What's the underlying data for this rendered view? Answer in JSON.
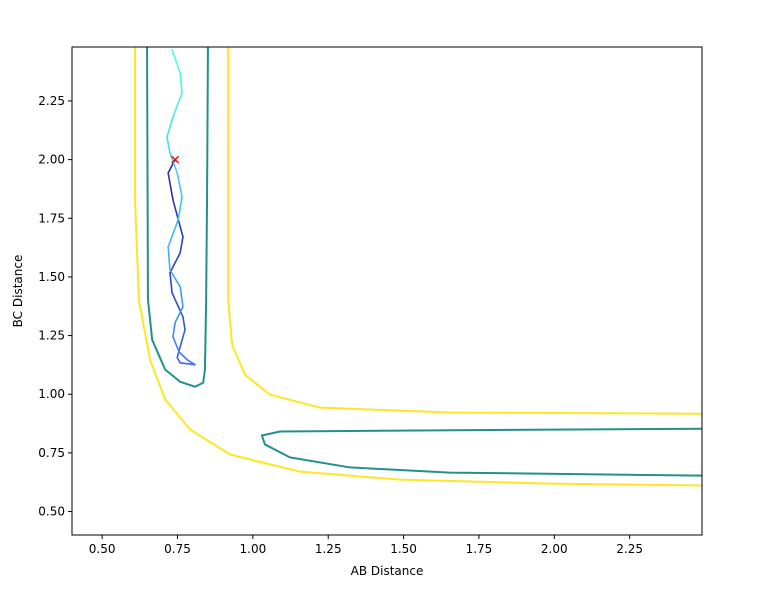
{
  "chart_data": {
    "type": "line",
    "title": "",
    "xlabel": "AB Distance",
    "ylabel": "BC Distance",
    "xlim": [
      0.4,
      2.49
    ],
    "ylim": [
      0.4,
      2.48
    ],
    "xticks": [
      "0.50",
      "0.75",
      "1.00",
      "1.25",
      "1.50",
      "1.75",
      "2.00",
      "2.25"
    ],
    "yticks": [
      "0.50",
      "0.75",
      "1.00",
      "1.25",
      "1.50",
      "1.75",
      "2.00",
      "2.25"
    ],
    "grid": false,
    "contours": [
      {
        "level_color": "#fde725",
        "points": [
          [
            0.609,
            2.48
          ],
          [
            0.609,
            1.828
          ],
          [
            0.622,
            1.4
          ],
          [
            0.659,
            1.147
          ],
          [
            0.709,
            0.977
          ],
          [
            0.792,
            0.849
          ],
          [
            0.924,
            0.743
          ],
          [
            1.156,
            0.67
          ],
          [
            1.488,
            0.636
          ],
          [
            1.985,
            0.619
          ],
          [
            2.489,
            0.611
          ]
        ]
      },
      {
        "level_color": "#fde725",
        "points": [
          [
            0.918,
            2.48
          ],
          [
            0.918,
            1.4
          ],
          [
            0.931,
            1.211
          ],
          [
            0.974,
            1.083
          ],
          [
            1.057,
            0.998
          ],
          [
            1.223,
            0.943
          ],
          [
            1.653,
            0.922
          ],
          [
            2.489,
            0.917
          ]
        ]
      },
      {
        "level_color": "#21918c",
        "points": [
          [
            0.649,
            2.48
          ],
          [
            0.652,
            1.403
          ],
          [
            0.666,
            1.232
          ],
          [
            0.709,
            1.105
          ],
          [
            0.759,
            1.053
          ],
          [
            0.808,
            1.032
          ],
          [
            0.835,
            1.049
          ],
          [
            0.841,
            1.104
          ],
          [
            0.845,
            1.403
          ],
          [
            0.848,
            1.828
          ],
          [
            0.851,
            2.48
          ]
        ]
      },
      {
        "level_color": "#21918c",
        "points": [
          [
            2.489,
            0.853
          ],
          [
            1.488,
            0.845
          ],
          [
            1.09,
            0.841
          ],
          [
            1.03,
            0.824
          ],
          [
            1.04,
            0.786
          ],
          [
            1.123,
            0.731
          ],
          [
            1.322,
            0.688
          ],
          [
            1.653,
            0.666
          ],
          [
            2.489,
            0.653
          ]
        ]
      }
    ],
    "trajectory": {
      "color_start": "#2d2d9a",
      "color_mid": "#3f7fff",
      "color_end": "#4cffe0",
      "points": [
        [
          0.742,
          2.0
        ],
        [
          0.719,
          1.943
        ],
        [
          0.735,
          1.828
        ],
        [
          0.768,
          1.671
        ],
        [
          0.759,
          1.603
        ],
        [
          0.725,
          1.518
        ],
        [
          0.732,
          1.432
        ],
        [
          0.768,
          1.33
        ],
        [
          0.775,
          1.275
        ],
        [
          0.759,
          1.203
        ],
        [
          0.749,
          1.156
        ],
        [
          0.759,
          1.134
        ],
        [
          0.808,
          1.126
        ],
        [
          0.782,
          1.147
        ],
        [
          0.755,
          1.181
        ],
        [
          0.735,
          1.245
        ],
        [
          0.742,
          1.305
        ],
        [
          0.768,
          1.373
        ],
        [
          0.759,
          1.458
        ],
        [
          0.725,
          1.53
        ],
        [
          0.719,
          1.628
        ],
        [
          0.752,
          1.743
        ],
        [
          0.765,
          1.841
        ],
        [
          0.749,
          1.943
        ],
        [
          0.725,
          2.029
        ],
        [
          0.715,
          2.097
        ],
        [
          0.735,
          2.182
        ],
        [
          0.765,
          2.284
        ],
        [
          0.759,
          2.369
        ],
        [
          0.732,
          2.467
        ]
      ]
    },
    "start_marker": {
      "x": 0.742,
      "y": 2.0,
      "symbol": "x",
      "color": "#ff0000"
    }
  }
}
